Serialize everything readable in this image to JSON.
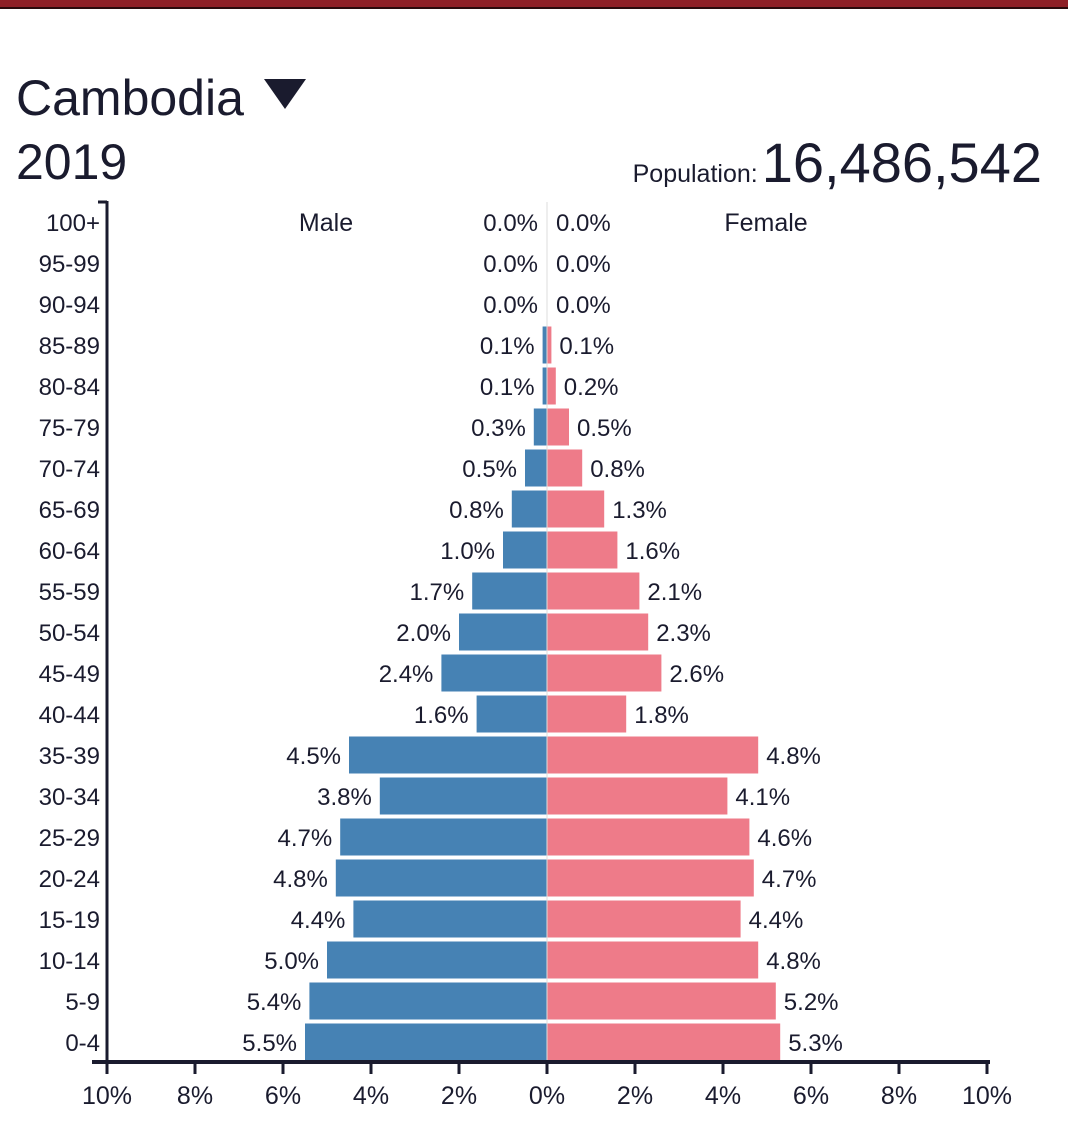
{
  "header": {
    "country": "Cambodia",
    "dropdown_icon": "triangle-down-icon",
    "year": "2019",
    "population_label": "Population:",
    "population_value": "16,486,542"
  },
  "colors": {
    "topbar": "#8e1f26",
    "male": "#4682b4",
    "female": "#ee7b89",
    "axis": "#1a1b2e"
  },
  "chart_data": {
    "type": "bar",
    "orientation": "horizontal-population-pyramid",
    "categories": [
      "100+",
      "95-99",
      "90-94",
      "85-89",
      "80-84",
      "75-79",
      "70-74",
      "65-69",
      "60-64",
      "55-59",
      "50-54",
      "45-49",
      "40-44",
      "35-39",
      "30-34",
      "25-29",
      "20-24",
      "15-19",
      "10-14",
      "5-9",
      "0-4"
    ],
    "series": [
      {
        "name": "Male",
        "values": [
          0.0,
          0.0,
          0.0,
          0.1,
          0.1,
          0.3,
          0.5,
          0.8,
          1.0,
          1.7,
          2.0,
          2.4,
          1.6,
          4.5,
          3.8,
          4.7,
          4.8,
          4.4,
          5.0,
          5.4,
          5.5
        ]
      },
      {
        "name": "Female",
        "values": [
          0.0,
          0.0,
          0.0,
          0.1,
          0.2,
          0.5,
          0.8,
          1.3,
          1.6,
          2.1,
          2.3,
          2.6,
          1.8,
          4.8,
          4.1,
          4.6,
          4.7,
          4.4,
          4.8,
          5.2,
          5.3
        ]
      }
    ],
    "xlim": [
      -10,
      10
    ],
    "xticks": [
      "10%",
      "8%",
      "6%",
      "4%",
      "2%",
      "0%",
      "2%",
      "4%",
      "6%",
      "8%",
      "10%"
    ],
    "unit": "%",
    "legend": [
      "Male",
      "Female"
    ]
  }
}
